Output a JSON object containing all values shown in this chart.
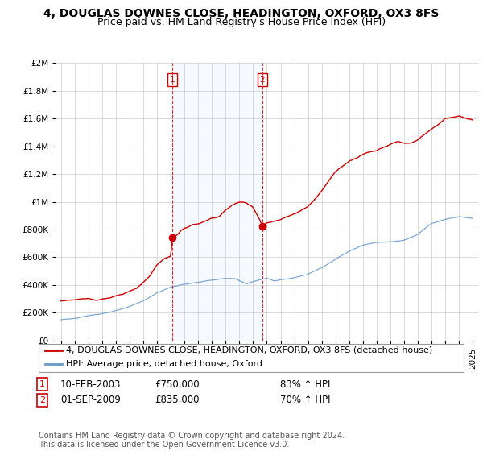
{
  "title": "4, DOUGLAS DOWNES CLOSE, HEADINGTON, OXFORD, OX3 8FS",
  "subtitle": "Price paid vs. HM Land Registry's House Price Index (HPI)",
  "ylim": [
    0,
    2000000
  ],
  "yticks": [
    0,
    200000,
    400000,
    600000,
    800000,
    1000000,
    1200000,
    1400000,
    1600000,
    1800000,
    2000000
  ],
  "x_start_year": 1995,
  "x_end_year": 2025,
  "background_color": "#ffffff",
  "plot_bg_color": "#ffffff",
  "grid_color": "#cccccc",
  "red_line_color": "#cc0000",
  "blue_line_color": "#6699cc",
  "sale1_year": 2003.12,
  "sale1_price": 750000,
  "sale2_year": 2009.67,
  "sale2_price": 835000,
  "vline_color": "#cc0000",
  "span_color": "#ddeeff",
  "legend_label_red": "4, DOUGLAS DOWNES CLOSE, HEADINGTON, OXFORD, OX3 8FS (detached house)",
  "legend_label_blue": "HPI: Average price, detached house, Oxford",
  "table_row1": [
    "1",
    "10-FEB-2003",
    "£750,000",
    "83% ↑ HPI"
  ],
  "table_row2": [
    "2",
    "01-SEP-2009",
    "£835,000",
    "70% ↑ HPI"
  ],
  "footnote": "Contains HM Land Registry data © Crown copyright and database right 2024.\nThis data is licensed under the Open Government Licence v3.0.",
  "title_fontsize": 10,
  "subtitle_fontsize": 9,
  "tick_fontsize": 7.5,
  "legend_fontsize": 8,
  "table_fontsize": 8.5,
  "footnote_fontsize": 7
}
